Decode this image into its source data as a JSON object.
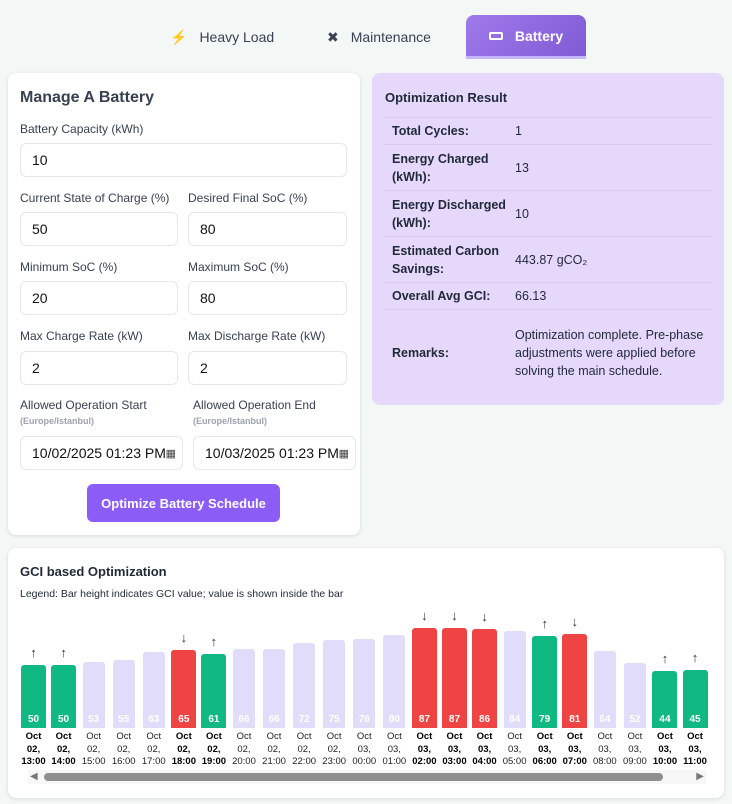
{
  "tabs": [
    {
      "label": "Heavy Load",
      "icon": "lightning-icon"
    },
    {
      "label": "Maintenance",
      "icon": "tools-icon"
    },
    {
      "label": "Battery",
      "icon": "battery-icon",
      "active": true
    }
  ],
  "form": {
    "title": "Manage A Battery",
    "capacity": {
      "label": "Battery Capacity (kWh)",
      "value": "10"
    },
    "soc": {
      "label": "Current State of Charge (%)",
      "value": "50"
    },
    "final_soc": {
      "label": "Desired Final SoC (%)",
      "value": "80"
    },
    "min_soc": {
      "label": "Minimum SoC (%)",
      "value": "20"
    },
    "max_soc": {
      "label": "Maximum SoC (%)",
      "value": "80"
    },
    "charge_rate": {
      "label": "Max Charge Rate (kW)",
      "value": "2"
    },
    "discharge_rate": {
      "label": "Max Discharge Rate (kW)",
      "value": "2"
    },
    "start": {
      "label": "Allowed Operation Start",
      "tz": "(Europe/Istanbul)",
      "value": "10/02/2025 01:23 PM"
    },
    "end": {
      "label": "Allowed Operation End",
      "tz": "(Europe/Istanbul)",
      "value": "10/03/2025 01:23 PM"
    },
    "submit": "Optimize Battery Schedule"
  },
  "result": {
    "title": "Optimization Result",
    "rows": [
      {
        "k": "Total Cycles:",
        "v": "1"
      },
      {
        "k": "Energy Charged (kWh):",
        "v": "13"
      },
      {
        "k": "Energy Discharged (kWh):",
        "v": "10"
      },
      {
        "k": "Estimated Carbon Savings:",
        "v": "443.87 gCO₂"
      },
      {
        "k": "Overall Avg GCI:",
        "v": "66.13"
      },
      {
        "k": "Remarks:",
        "v": "Optimization complete. Pre-phase adjustments were applied before solving the main schedule."
      }
    ]
  },
  "chart_data": {
    "type": "bar",
    "title": "GCI based Optimization",
    "legend": "Legend: Bar height indicates GCI value; value is shown inside the bar",
    "categories": [
      "Oct 02, 13:00",
      "Oct 02, 14:00",
      "Oct 02, 15:00",
      "Oct 02, 16:00",
      "Oct 02, 17:00",
      "Oct 02, 18:00",
      "Oct 02, 19:00",
      "Oct 02, 20:00",
      "Oct 02, 21:00",
      "Oct 02, 22:00",
      "Oct 02, 23:00",
      "Oct 03, 00:00",
      "Oct 03, 01:00",
      "Oct 03, 02:00",
      "Oct 03, 03:00",
      "Oct 03, 04:00",
      "Oct 03, 05:00",
      "Oct 03, 06:00",
      "Oct 03, 07:00",
      "Oct 03, 08:00",
      "Oct 03, 09:00",
      "Oct 03, 10:00",
      "Oct 03, 11:00"
    ],
    "values": [
      50,
      50,
      53,
      55,
      63,
      65,
      61,
      66,
      66,
      72,
      75,
      76,
      80,
      87,
      87,
      86,
      84,
      79,
      81,
      64,
      52,
      44,
      45
    ],
    "actions": [
      "charge",
      "charge",
      "idle",
      "idle",
      "idle",
      "discharge",
      "charge",
      "idle",
      "idle",
      "idle",
      "idle",
      "idle",
      "idle",
      "discharge",
      "discharge",
      "discharge",
      "idle",
      "charge",
      "discharge",
      "idle",
      "idle",
      "charge",
      "charge"
    ],
    "colors": {
      "charge": "#10b981",
      "discharge": "#ef4444",
      "idle": "#e2dcfb"
    }
  }
}
